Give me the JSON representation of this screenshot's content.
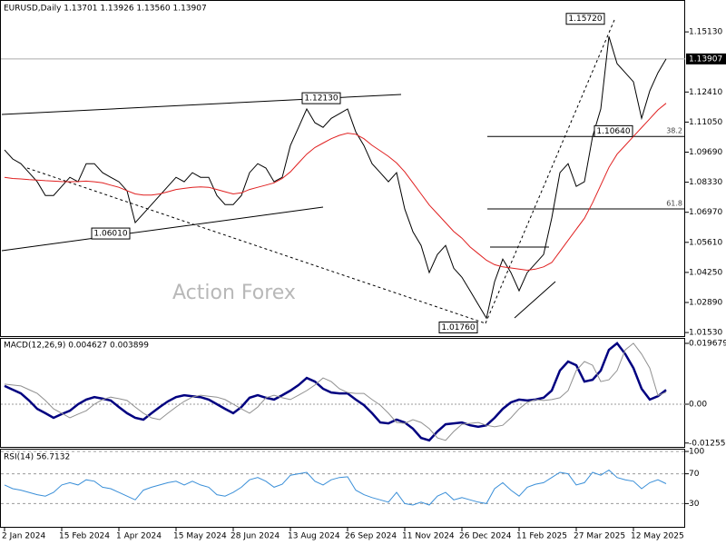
{
  "chart_data": [
    {
      "type": "line",
      "title": "EURUSD,Daily  1.13701 1.13926 1.13560 1.13907",
      "watermark": "Action Forex",
      "series": [
        {
          "color": "#000000",
          "values": [
            1.0979,
            1.0938,
            1.0917,
            1.0876,
            1.0835,
            1.0773,
            1.0773,
            1.0814,
            1.0855,
            1.0835,
            1.0917,
            1.0917,
            1.0876,
            1.0855,
            1.0835,
            1.0794,
            1.065,
            1.0691,
            1.0732,
            1.0773,
            1.0814,
            1.0855,
            1.0835,
            1.0876,
            1.0855,
            1.0855,
            1.0773,
            1.0732,
            1.0732,
            1.0773,
            1.0876,
            1.0917,
            1.0897,
            1.0835,
            1.0855,
            1.0999,
            1.1081,
            1.1164,
            1.1102,
            1.1081,
            1.1122,
            1.1143,
            1.1164,
            1.1061,
            1.0999,
            1.0917,
            1.0876,
            1.0835,
            1.0876,
            1.0712,
            1.0609,
            1.0547,
            1.0424,
            1.0506,
            1.0547,
            1.0444,
            1.0403,
            1.0342,
            1.028,
            1.0218,
            1.0383,
            1.0485,
            1.0424,
            1.0342,
            1.0424,
            1.0465,
            1.0506,
            1.0671,
            1.0876,
            1.0917,
            1.0814,
            1.0835,
            1.104,
            1.1164,
            1.1492,
            1.1369,
            1.1328,
            1.1287,
            1.1122,
            1.1246,
            1.1328,
            1.13907
          ]
        },
        {
          "color": "#e02020",
          "values": [
            1.0855,
            1.085,
            1.0848,
            1.0845,
            1.0843,
            1.084,
            1.0838,
            1.0836,
            1.0835,
            1.0836,
            1.0838,
            1.0835,
            1.083,
            1.082,
            1.081,
            1.0795,
            1.078,
            1.0775,
            1.0775,
            1.078,
            1.079,
            1.08,
            1.0805,
            1.081,
            1.0812,
            1.081,
            1.08,
            1.079,
            1.078,
            1.0785,
            1.08,
            1.081,
            1.082,
            1.083,
            1.085,
            1.088,
            1.092,
            1.096,
            1.099,
            1.101,
            1.103,
            1.1045,
            1.1055,
            1.105,
            1.103,
            1.1,
            1.0975,
            1.095,
            1.092,
            1.088,
            1.083,
            1.078,
            1.073,
            1.069,
            1.065,
            1.061,
            1.058,
            1.054,
            1.051,
            1.048,
            1.046,
            1.045,
            1.0445,
            1.044,
            1.0435,
            1.044,
            1.045,
            1.047,
            1.052,
            1.057,
            1.062,
            1.067,
            1.074,
            1.082,
            1.09,
            1.096,
            1.1,
            1.104,
            1.108,
            1.112,
            1.116,
            1.119
          ]
        }
      ],
      "ylim": [
        1.0137,
        1.1649
      ],
      "yticks": [
        {
          "value": 1.1513,
          "label": "1.15130"
        },
        {
          "value": 1.1241,
          "label": "1.12410"
        },
        {
          "value": 1.1105,
          "label": "1.11050"
        },
        {
          "value": 1.0969,
          "label": "1.09690"
        },
        {
          "value": 1.0833,
          "label": "1.08330"
        },
        {
          "value": 1.0697,
          "label": "1.06970"
        },
        {
          "value": 1.0561,
          "label": "1.05610"
        },
        {
          "value": 1.0425,
          "label": "1.04250"
        },
        {
          "value": 1.0289,
          "label": "1.02890"
        },
        {
          "value": 1.0153,
          "label": "1.01530"
        }
      ],
      "current_price": 1.13907,
      "annotations": [
        {
          "value": 1.1572,
          "label": "1.15720"
        },
        {
          "value": 1.1213,
          "label": "1.12130"
        },
        {
          "value": 1.1064,
          "label": "1.10640"
        },
        {
          "value": 1.0601,
          "label": "1.06010"
        },
        {
          "value": 1.0176,
          "label": "1.01760"
        }
      ],
      "fib": [
        {
          "level": 38.2,
          "price": 1.104
        },
        {
          "level": 61.8,
          "price": 1.0712
        }
      ]
    },
    {
      "type": "line",
      "title": "MACD(12,26,9) 0.004627 0.003899",
      "series": [
        {
          "color": "#000080",
          "values": [
            0.0059,
            0.0047,
            0.0035,
            0.0012,
            -0.0015,
            -0.0029,
            -0.0044,
            -0.0032,
            -0.0021,
            0,
            0.0015,
            0.0023,
            0.0018,
            0.0012,
            -0.0009,
            -0.0029,
            -0.0044,
            -0.005,
            -0.0029,
            -0.0009,
            0.0009,
            0.0023,
            0.0029,
            0.0026,
            0.0023,
            0.0015,
            0,
            -0.0015,
            -0.0029,
            -0.0009,
            0.0021,
            0.0029,
            0.0021,
            0.0015,
            0.0029,
            0.0044,
            0.0062,
            0.0085,
            0.0073,
            0.005,
            0.0038,
            0.0035,
            0.0035,
            0.0015,
            -0.0003,
            -0.0029,
            -0.0059,
            -0.0062,
            -0.005,
            -0.0059,
            -0.0079,
            -0.0109,
            -0.0117,
            -0.0088,
            -0.0065,
            -0.0062,
            -0.0059,
            -0.0068,
            -0.0073,
            -0.0068,
            -0.0044,
            -0.0015,
            0.0006,
            0.0015,
            0.0012,
            0.0015,
            0.0021,
            0.0044,
            0.0109,
            0.0138,
            0.0126,
            0.0073,
            0.0079,
            0.0109,
            0.0176,
            0.0197,
            0.0162,
            0.0117,
            0.005,
            0.0015,
            0.0026,
            0.004627
          ]
        },
        {
          "color": "#909090",
          "values": [
            0.0065,
            0.0062,
            0.0059,
            0.0047,
            0.0035,
            0.0012,
            -0.0015,
            -0.0029,
            -0.0044,
            -0.0032,
            -0.0021,
            0,
            0.0015,
            0.0023,
            0.0018,
            0.0012,
            -0.0009,
            -0.0029,
            -0.0044,
            -0.005,
            -0.0029,
            -0.0009,
            0.0009,
            0.0023,
            0.0029,
            0.0026,
            0.0023,
            0.0015,
            0,
            -0.0015,
            -0.0029,
            -0.0009,
            0.0021,
            0.0029,
            0.0021,
            0.0015,
            0.0029,
            0.0044,
            0.0062,
            0.0085,
            0.0073,
            0.005,
            0.0038,
            0.0035,
            0.0035,
            0.0015,
            -0.0003,
            -0.0029,
            -0.0059,
            -0.0062,
            -0.005,
            -0.0059,
            -0.0079,
            -0.0109,
            -0.0117,
            -0.0088,
            -0.0065,
            -0.0062,
            -0.0059,
            -0.0068,
            -0.0073,
            -0.0068,
            -0.0044,
            -0.0015,
            0.0006,
            0.0015,
            0.0012,
            0.0015,
            0.0021,
            0.0044,
            0.0109,
            0.0138,
            0.0126,
            0.0073,
            0.0079,
            0.0109,
            0.0176,
            0.0197,
            0.0162,
            0.0117,
            0.0028,
            0.003899
          ]
        }
      ],
      "ylim": [
        -0.0138,
        0.02144
      ],
      "yticks": [
        0.019679,
        {
          "value": 0,
          "label": "0.00"
        },
        -0.012552
      ],
      "zero_line": true
    },
    {
      "type": "line",
      "title": "RSI(14) 56.7132",
      "categories": [
        "2 Jan 2024",
        null,
        null,
        null,
        null,
        null,
        null,
        "15 Feb 2024",
        null,
        null,
        null,
        null,
        null,
        null,
        "1 Apr 2024",
        null,
        null,
        null,
        null,
        null,
        null,
        "15 May 2024",
        null,
        null,
        null,
        null,
        null,
        null,
        "28 Jun 2024",
        null,
        null,
        null,
        null,
        null,
        null,
        "13 Aug 2024",
        null,
        null,
        null,
        null,
        null,
        null,
        "26 Sep 2024",
        null,
        null,
        null,
        null,
        null,
        null,
        "11 Nov 2024",
        null,
        null,
        null,
        null,
        null,
        null,
        "26 Dec 2024",
        null,
        null,
        null,
        null,
        null,
        null,
        "11 Feb 2025",
        null,
        null,
        null,
        null,
        null,
        null,
        "27 Mar 2025",
        null,
        null,
        null,
        null,
        null,
        null,
        "12 May 2025",
        null,
        null,
        null,
        null
      ],
      "series": [
        {
          "color": "#3a8fd8",
          "values": [
            55,
            50,
            48,
            45,
            42,
            40,
            45,
            55,
            58,
            55,
            62,
            60,
            52,
            50,
            45,
            40,
            35,
            48,
            52,
            55,
            58,
            60,
            55,
            60,
            55,
            52,
            42,
            40,
            45,
            52,
            62,
            65,
            60,
            52,
            56,
            68,
            70,
            72,
            60,
            55,
            62,
            65,
            66,
            48,
            42,
            38,
            35,
            32,
            45,
            30,
            28,
            32,
            28,
            40,
            45,
            35,
            38,
            35,
            32,
            30,
            50,
            58,
            48,
            40,
            52,
            56,
            58,
            65,
            72,
            70,
            55,
            58,
            72,
            68,
            75,
            65,
            62,
            60,
            50,
            58,
            62,
            56.7132
          ]
        }
      ],
      "ylim": [
        0,
        100
      ],
      "yticks": [
        100,
        70,
        30
      ]
    }
  ]
}
